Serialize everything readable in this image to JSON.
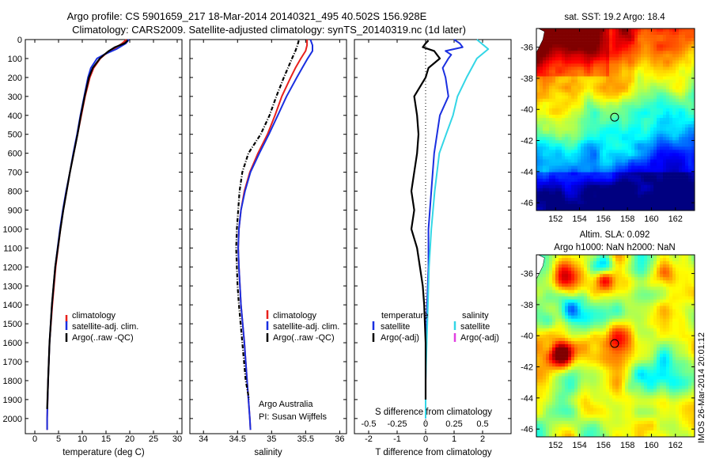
{
  "title": {
    "line1": "Argo profile: CS 5901659_217 18-Mar-2014 20140321_495 40.502S 156.928E",
    "line2": "Climatology: CARS2009. Satellite-adjusted climatology: synTS_20140319.nc (1d later)"
  },
  "colors": {
    "climatology": "#e8201c",
    "satellite": "#1a2fe0",
    "argo": "#000000",
    "sat_salinity": "#33d6e6",
    "argo_adj_salinity": "#e040e0"
  },
  "chart_data": [
    {
      "type": "line",
      "id": "temperature",
      "xlabel": "temperature (deg C)",
      "xlim": [
        -2,
        31
      ],
      "xticks": [
        0,
        5,
        10,
        15,
        20,
        25,
        30
      ],
      "ylim": [
        0,
        2080
      ],
      "yticks": [
        0,
        100,
        200,
        300,
        400,
        500,
        600,
        700,
        800,
        900,
        1000,
        1100,
        1200,
        1300,
        1400,
        1500,
        1600,
        1700,
        1800,
        1900,
        2000
      ],
      "y_reversed": true,
      "legend": [
        "climatology",
        "satellite-adj. clim.",
        "Argo(..raw -QC)"
      ],
      "series": [
        {
          "name": "climatology",
          "color": "#e8201c",
          "depth": [
            0,
            20,
            50,
            80,
            100,
            150,
            200,
            300,
            400,
            500,
            600,
            700,
            800,
            900,
            1000,
            1200,
            1400,
            1600,
            1800,
            2000,
            2060
          ],
          "values": [
            19.3,
            18.4,
            16.6,
            14.7,
            13.8,
            12.4,
            11.6,
            10.6,
            9.8,
            9.0,
            8.2,
            7.4,
            6.7,
            6.0,
            5.4,
            4.4,
            3.7,
            3.1,
            2.8,
            2.6,
            2.6
          ]
        },
        {
          "name": "satellite-adj. clim.",
          "color": "#1a2fe0",
          "depth": [
            0,
            20,
            50,
            80,
            100,
            150,
            200,
            300,
            400,
            500,
            600,
            700,
            800,
            900,
            1000,
            1200,
            1400,
            1600,
            1800,
            2000,
            2060
          ],
          "values": [
            19.8,
            19.2,
            17.2,
            14.5,
            13.1,
            11.8,
            11.2,
            10.4,
            9.6,
            8.9,
            8.1,
            7.4,
            6.6,
            5.9,
            5.3,
            4.3,
            3.6,
            3.1,
            2.8,
            2.6,
            2.6
          ]
        },
        {
          "name": "Argo(..raw -QC)",
          "color": "#000000",
          "depth": [
            5,
            20,
            40,
            60,
            80,
            100,
            150,
            200,
            300,
            400,
            500,
            600,
            700,
            800,
            900,
            1000,
            1200,
            1400,
            1600,
            1800,
            1950
          ],
          "values": [
            19.6,
            18.9,
            16.9,
            15.6,
            14.6,
            13.7,
            12.2,
            11.4,
            10.5,
            9.7,
            9.0,
            8.2,
            7.4,
            6.7,
            6.0,
            5.4,
            4.3,
            3.6,
            3.1,
            2.8,
            2.6
          ]
        }
      ]
    },
    {
      "type": "line",
      "id": "salinity",
      "xlabel": "salinity",
      "xlim": [
        33.8,
        36.1
      ],
      "xticks": [
        34,
        34.5,
        35,
        35.5,
        36
      ],
      "ylim": [
        0,
        2080
      ],
      "y_reversed": true,
      "legend": [
        "climatology",
        "satellite-adj. clim.",
        "Argo(..raw -QC)"
      ],
      "annotation": [
        "Argo Australia",
        "PI: Susan Wijffels"
      ],
      "series": [
        {
          "name": "climatology",
          "color": "#e8201c",
          "depth": [
            0,
            30,
            60,
            100,
            150,
            200,
            300,
            400,
            500,
            600,
            700,
            800,
            900,
            1000,
            1100,
            1200,
            1400,
            1600,
            1800,
            2000,
            2060
          ],
          "values": [
            35.52,
            35.52,
            35.5,
            35.43,
            35.35,
            35.28,
            35.15,
            35.05,
            34.94,
            34.8,
            34.68,
            34.6,
            34.55,
            34.52,
            34.51,
            34.52,
            34.55,
            34.6,
            34.64,
            34.68,
            34.69
          ]
        },
        {
          "name": "satellite-adj. clim.",
          "color": "#1a2fe0",
          "depth": [
            0,
            30,
            60,
            100,
            150,
            200,
            300,
            400,
            500,
            600,
            700,
            800,
            900,
            1000,
            1100,
            1200,
            1400,
            1600,
            1800,
            2000,
            2060
          ],
          "values": [
            35.57,
            35.6,
            35.6,
            35.53,
            35.45,
            35.37,
            35.22,
            35.09,
            34.96,
            34.82,
            34.69,
            34.61,
            34.55,
            34.52,
            34.51,
            34.52,
            34.55,
            34.6,
            34.64,
            34.68,
            34.69
          ]
        },
        {
          "name": "Argo(..raw -QC)",
          "color": "#000000",
          "depth": [
            5,
            30,
            60,
            100,
            150,
            200,
            300,
            400,
            500,
            600,
            700,
            800,
            900,
            1000,
            1100,
            1200,
            1300,
            1400,
            1600,
            1800,
            1900
          ],
          "values": [
            35.4,
            35.38,
            35.35,
            35.3,
            35.24,
            35.18,
            35.07,
            34.97,
            34.84,
            34.66,
            34.57,
            34.53,
            34.51,
            34.49,
            34.48,
            34.49,
            34.5,
            34.52,
            34.57,
            34.62,
            34.67
          ]
        }
      ]
    },
    {
      "type": "line",
      "id": "difference",
      "xlabel": "T difference from climatology",
      "xlabel2": "S difference from climatology",
      "xlim": [
        -2.5,
        3
      ],
      "xticks": [
        -2,
        -1,
        0,
        1,
        2
      ],
      "xticks_s": [
        -0.5,
        -0.25,
        0,
        0.25,
        0.5
      ],
      "ylim": [
        0,
        2080
      ],
      "y_reversed": true,
      "legend_t": {
        "title": "temperature",
        "items": [
          "satellite",
          "Argo(-adj)"
        ]
      },
      "legend_s": {
        "title": "salinity",
        "items": [
          "satellite",
          "Argo(-adj)"
        ]
      },
      "series": [
        {
          "name": "T satellite",
          "color": "#1a2fe0",
          "depth": [
            0,
            20,
            40,
            60,
            80,
            100,
            150,
            200,
            300,
            400,
            500,
            600,
            800,
            1000,
            1200,
            1400,
            1600,
            1800,
            2000
          ],
          "values": [
            1.0,
            1.2,
            1.3,
            0.7,
            0.9,
            0.8,
            0.6,
            0.7,
            0.8,
            0.5,
            0.4,
            0.3,
            0.2,
            0.1,
            0.1,
            0.05,
            0.02,
            0.0,
            0.0
          ]
        },
        {
          "name": "S satellite",
          "color": "#33d6e6",
          "depth": [
            0,
            50,
            100,
            200,
            300,
            400,
            500,
            600,
            800,
            1000,
            1200,
            1400,
            1600,
            1800,
            2000
          ],
          "values": [
            0.45,
            0.55,
            0.45,
            0.36,
            0.28,
            0.24,
            0.18,
            0.12,
            0.08,
            0.05,
            0.03,
            0.02,
            0.01,
            0.0,
            0.0
          ]
        },
        {
          "name": "Argo(-adj)",
          "color": "#000000",
          "depth": [
            5,
            20,
            40,
            60,
            80,
            100,
            150,
            200,
            300,
            400,
            500,
            600,
            700,
            800,
            900,
            1000,
            1100,
            1200,
            1300,
            1400,
            1600,
            1800,
            1900
          ],
          "values": [
            0.1,
            0.0,
            -0.1,
            0.3,
            0.4,
            0.5,
            0.1,
            0.0,
            -0.4,
            -0.3,
            -0.25,
            -0.3,
            -0.4,
            -0.5,
            -0.4,
            -0.5,
            -0.3,
            -0.2,
            -0.1,
            -0.05,
            0.0,
            0.0,
            0.0
          ]
        }
      ]
    },
    {
      "type": "heatmap",
      "id": "sst",
      "title": "sat. SST: 19.2  Argo: 18.4",
      "xticks": [
        152,
        154,
        156,
        158,
        160,
        162
      ],
      "yticks": [
        -36,
        -38,
        -40,
        -42,
        -44,
        -46
      ],
      "xlim": [
        150.4,
        163.6
      ],
      "ylim": [
        -46.5,
        -34.8
      ],
      "marker": {
        "lon": 156.928,
        "lat": -40.502
      }
    },
    {
      "type": "heatmap",
      "id": "sla",
      "title": "Altim. SLA: 0.092",
      "subtitle": "Argo h1000: NaN  h2000: NaN",
      "xticks": [
        152,
        154,
        156,
        158,
        160,
        162
      ],
      "yticks": [
        -36,
        -38,
        -40,
        -42,
        -44,
        -46
      ],
      "xlim": [
        150.4,
        163.6
      ],
      "ylim": [
        -46.5,
        -34.8
      ],
      "marker": {
        "lon": 156.928,
        "lat": -40.502
      }
    }
  ],
  "footer": "IMOS 26-Mar-2014 20:01:12"
}
